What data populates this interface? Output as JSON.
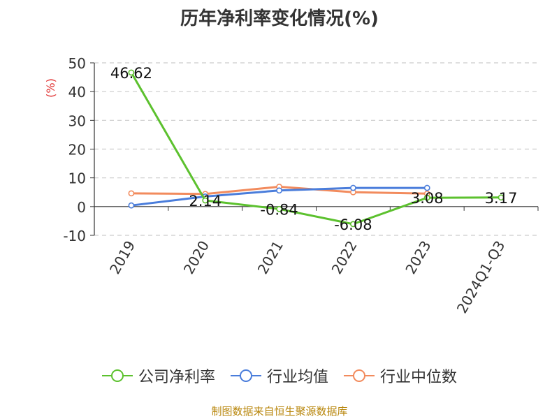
{
  "chart_data": {
    "type": "line",
    "title": "历年净利率变化情况(%)",
    "ylabel": "(%)",
    "xlabel": "",
    "categories": [
      "2019",
      "2020",
      "2021",
      "2022",
      "2023",
      "2024Q1-Q3"
    ],
    "ylim": [
      -10,
      50
    ],
    "yticks": [
      -10,
      0,
      10,
      20,
      30,
      40,
      50
    ],
    "grid": true,
    "legend_position": "bottom",
    "series": [
      {
        "name": "公司净利率",
        "color": "#5cc12e",
        "values": [
          46.62,
          2.14,
          -0.84,
          -6.08,
          3.08,
          3.17
        ],
        "labels": [
          "46.62",
          "2.14",
          "-0.84",
          "-6.08",
          "3.08",
          "3.17"
        ]
      },
      {
        "name": "行业均值",
        "color": "#4a7ddb",
        "values": [
          0.4,
          3.5,
          5.6,
          6.5,
          6.5,
          null
        ]
      },
      {
        "name": "行业中位数",
        "color": "#f28b5d",
        "values": [
          4.6,
          4.4,
          6.9,
          5.0,
          4.5,
          null
        ]
      }
    ]
  },
  "footer": "制图数据来自恒生聚源数据库"
}
